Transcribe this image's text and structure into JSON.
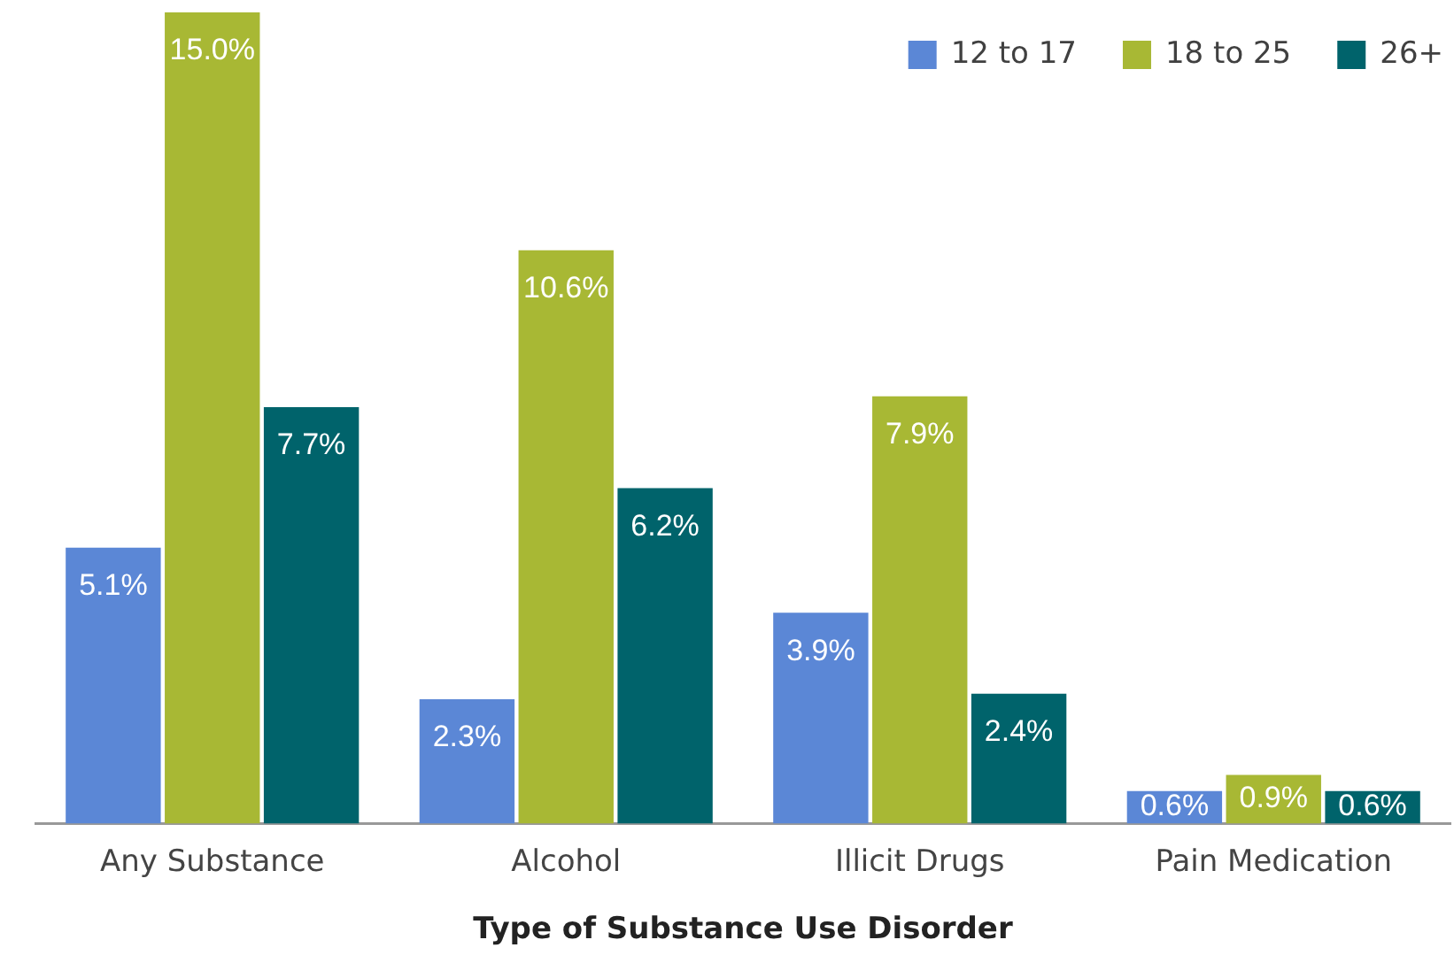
{
  "chart_data": {
    "type": "bar",
    "xlabel": "Type of Substance Use Disorder",
    "categories": [
      "Any Substance",
      "Alcohol",
      "Illicit Drugs",
      "Pain Medication"
    ],
    "series": [
      {
        "name": "12 to 17",
        "color": "#5b87d6",
        "values": [
          5.1,
          2.3,
          3.9,
          0.6
        ],
        "value_labels": [
          "5.1%",
          "2.3%",
          "3.9%",
          "0.6%"
        ]
      },
      {
        "name": "18 to 25",
        "color": "#a8b834",
        "values": [
          15.0,
          10.6,
          7.9,
          0.9
        ],
        "value_labels": [
          "15.0%",
          "10.6%",
          "7.9%",
          "0.9%"
        ]
      },
      {
        "name": "26+",
        "color": "#00636b",
        "values": [
          7.7,
          6.2,
          2.4,
          0.6
        ],
        "value_labels": [
          "7.7%",
          "6.2%",
          "2.4%",
          "0.6%"
        ]
      }
    ],
    "legend": "top right",
    "grid": false
  }
}
